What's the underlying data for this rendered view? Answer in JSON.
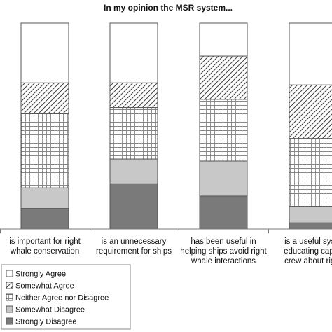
{
  "chart_data": {
    "type": "bar",
    "stacked": true,
    "normalized_to": 100,
    "title": "In my opinion the MSR system...",
    "xlabel": "",
    "ylabel": "",
    "ylim": [
      0,
      100
    ],
    "grid": false,
    "legend_position": "bottom-left",
    "categories": [
      [
        "is important for right",
        "whale conservation"
      ],
      [
        "is an unnecessary",
        "requirement for ships"
      ],
      [
        "has been useful in",
        "helping ships avoid right",
        "whale interactions"
      ],
      [
        "is a useful syste",
        "educating captai",
        "crew about right"
      ]
    ],
    "series": [
      {
        "name": "Strongly Disagree",
        "pattern": "dark",
        "color": "#7a7a7a",
        "values": [
          10,
          22,
          16,
          3
        ]
      },
      {
        "name": "Somewhat Disagree",
        "pattern": "light",
        "color": "#c8c8c8",
        "values": [
          10,
          12,
          17,
          8
        ]
      },
      {
        "name": "Neither Agree nor Disagree",
        "pattern": "grid",
        "color": "#ffffff",
        "values": [
          36,
          25,
          30,
          33
        ]
      },
      {
        "name": "Somewhat Agree",
        "pattern": "hatch",
        "color": "#ffffff",
        "values": [
          15,
          12,
          21,
          26
        ]
      },
      {
        "name": "Strongly Agree",
        "pattern": "white",
        "color": "#ffffff",
        "values": [
          29,
          29,
          16,
          30
        ]
      }
    ],
    "legend_order": [
      "Strongly Agree",
      "Somewhat Agree",
      "Neither Agree nor Disagree",
      "Somewhat Disagree",
      "Strongly Disagree"
    ]
  }
}
